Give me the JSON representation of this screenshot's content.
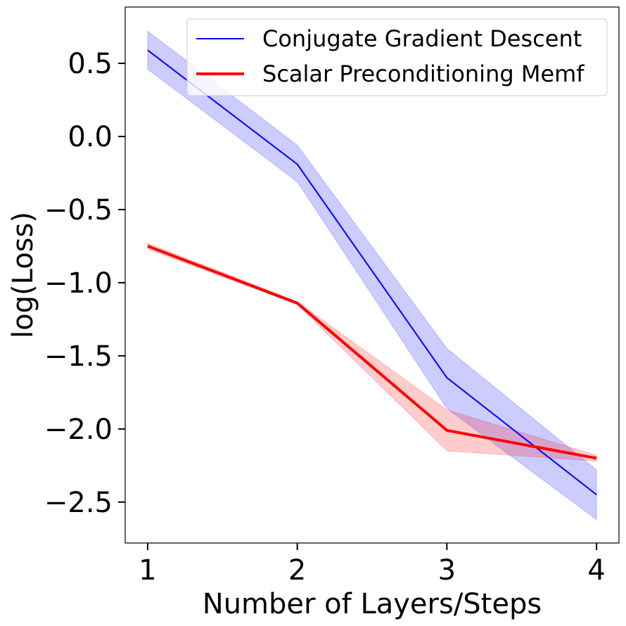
{
  "chart_data": {
    "type": "line",
    "title": "",
    "xlabel": "Number of Layers/Steps",
    "ylabel": "log(Loss)",
    "x": [
      1,
      2,
      3,
      4
    ],
    "xlim": [
      0.85,
      4.15
    ],
    "ylim": [
      -2.78,
      0.885
    ],
    "xticks": [
      1,
      2,
      3,
      4
    ],
    "xtick_labels": [
      "1",
      "2",
      "3",
      "4"
    ],
    "yticks": [
      0.5,
      0.0,
      -0.5,
      -1.0,
      -1.5,
      -2.0,
      -2.5
    ],
    "ytick_labels": [
      "0.5",
      "0.0",
      "−0.5",
      "−1.0",
      "−1.5",
      "−2.0",
      "−2.5"
    ],
    "grid": false,
    "legend_position": "top-right",
    "series": [
      {
        "name": "Conjugate Gradient Descent",
        "color": "#0000ff",
        "values": [
          0.59,
          -0.19,
          -1.65,
          -2.45
        ],
        "upper": [
          0.72,
          -0.06,
          -1.45,
          -2.28
        ],
        "lower": [
          0.46,
          -0.31,
          -1.86,
          -2.62
        ]
      },
      {
        "name": "Scalar Preconditioning Memf",
        "color": "#ff0000",
        "values": [
          -0.75,
          -1.14,
          -2.01,
          -2.2
        ],
        "upper": [
          -0.73,
          -1.13,
          -1.87,
          -2.18
        ],
        "lower": [
          -0.77,
          -1.15,
          -2.15,
          -2.22
        ]
      }
    ]
  }
}
